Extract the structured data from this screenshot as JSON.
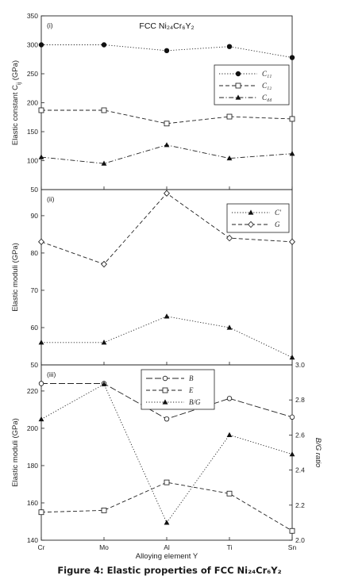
{
  "caption": "Figure 4: Elastic properties of FCC Ni₂₄Cr₆Y₂",
  "chart_data": [
    {
      "type": "line",
      "panel_label": "(i)",
      "title": "FCC Ni₂₄Cr₆Y₂",
      "ylabel": "Elastic constant C_ij (GPa)",
      "ylim": [
        50,
        350
      ],
      "yticks": [
        50,
        100,
        150,
        200,
        250,
        300,
        350
      ],
      "categories": [
        "Cr",
        "Mo",
        "Al",
        "Ti",
        "Sn"
      ],
      "legend_position": "top-right",
      "series": [
        {
          "name": "C₁₁",
          "marker": "circle-filled",
          "dash": "dot",
          "values": [
            300,
            300,
            290,
            297,
            278
          ]
        },
        {
          "name": "C₁₂",
          "marker": "square-open",
          "dash": "dash",
          "values": [
            187,
            187,
            164,
            176,
            172
          ]
        },
        {
          "name": "C₄₄",
          "marker": "triangle-filled",
          "dash": "dashdot",
          "values": [
            106,
            95,
            127,
            104,
            112
          ]
        }
      ]
    },
    {
      "type": "line",
      "panel_label": "(ii)",
      "ylabel": "Elastic moduli (GPa)",
      "ylim": [
        50,
        97
      ],
      "yticks": [
        50,
        60,
        70,
        80,
        90
      ],
      "categories": [
        "Cr",
        "Mo",
        "Al",
        "Ti",
        "Sn"
      ],
      "legend_position": "top-right",
      "series": [
        {
          "name": "C'",
          "marker": "triangle-filled",
          "dash": "dot",
          "values": [
            56,
            56,
            63,
            60,
            52
          ]
        },
        {
          "name": "G",
          "marker": "diamond-open",
          "dash": "dash",
          "values": [
            83,
            77,
            96,
            84,
            83
          ]
        }
      ]
    },
    {
      "type": "line",
      "panel_label": "(iii)",
      "xlabel": "Alloying element Y",
      "ylabel": "Elastic moduli (GPa)",
      "ylabel_right": "B/G ratio",
      "ylim": [
        140,
        234
      ],
      "yticks": [
        140,
        160,
        180,
        200,
        220
      ],
      "ylim_right": [
        2.0,
        3.0
      ],
      "yticks_right": [
        "2.0",
        "2.2",
        "2.4",
        "2.6",
        "2.8",
        "3.0"
      ],
      "categories": [
        "Cr",
        "Mo",
        "Al",
        "Ti",
        "Sn"
      ],
      "legend_position": "top-center",
      "series": [
        {
          "name": "B",
          "axis": "left",
          "marker": "circle-open",
          "dash": "longdash",
          "values": [
            224,
            224,
            205,
            216,
            206
          ]
        },
        {
          "name": "E",
          "axis": "left",
          "marker": "square-open",
          "dash": "dash",
          "values": [
            155,
            156,
            171,
            165,
            145
          ]
        },
        {
          "name": "B/G",
          "axis": "right",
          "marker": "triangle-filled",
          "dash": "dot",
          "values": [
            2.69,
            2.89,
            2.1,
            2.6,
            2.49
          ]
        }
      ]
    }
  ]
}
